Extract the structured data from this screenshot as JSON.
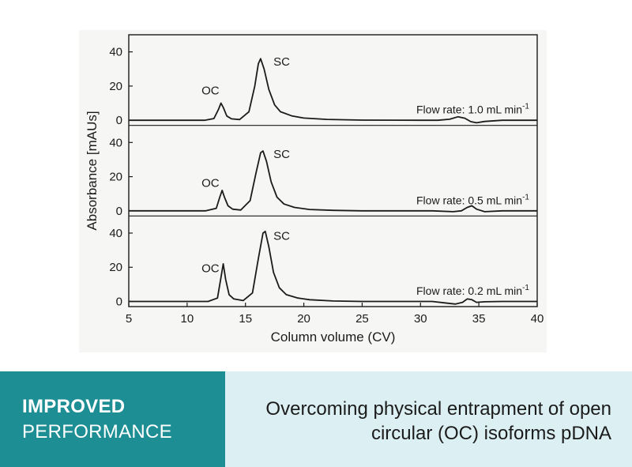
{
  "chart_data": {
    "type": "line",
    "title": "",
    "xlabel": "Column volume (CV)",
    "ylabel": "Absorbance [mAUs]",
    "xlim": [
      5,
      40
    ],
    "xticks": [
      5,
      10,
      15,
      20,
      25,
      30,
      35,
      40
    ],
    "ylim": [
      -3,
      50
    ],
    "yticks": [
      0,
      20,
      40
    ],
    "grid": false,
    "panels": [
      {
        "label": "Flow rate: 1.0 mL min",
        "label_superscript": "-1",
        "peak_labels": [
          {
            "text": "OC",
            "x": 12.0,
            "y": 15
          },
          {
            "text": "SC",
            "x": 17.4,
            "y": 32
          }
        ],
        "series": [
          {
            "x": [
              5,
              11.5,
              12.3,
              12.7,
              12.9,
              13.1,
              13.4,
              13.8,
              14.5,
              15.3,
              15.8,
              16.1,
              16.3,
              16.6,
              17.0,
              17.5,
              18.0,
              19.0,
              20.0,
              22.0,
              25.0,
              30.0,
              31.5,
              32.5,
              33.2,
              33.8,
              34.3,
              34.8,
              35.5,
              37.0,
              40.0
            ],
            "y": [
              0,
              0,
              1,
              6.5,
              10,
              7.5,
              2.5,
              0.8,
              0.4,
              5,
              20,
              33,
              36,
              30,
              18,
              9,
              5,
              2.5,
              1.3,
              0.5,
              0.1,
              0,
              0,
              0.6,
              2,
              1.2,
              -0.8,
              -1.5,
              -0.7,
              0,
              0
            ]
          }
        ]
      },
      {
        "label": "Flow rate: 0.5 mL min",
        "label_superscript": "-1",
        "peak_labels": [
          {
            "text": "OC",
            "x": 12.0,
            "y": 14
          },
          {
            "text": "SC",
            "x": 17.4,
            "y": 31
          }
        ],
        "series": [
          {
            "x": [
              5,
              11.6,
              12.5,
              12.8,
              13.0,
              13.2,
              13.5,
              13.9,
              14.6,
              15.4,
              15.9,
              16.3,
              16.5,
              16.8,
              17.2,
              17.7,
              18.3,
              19.2,
              20.5,
              22.5,
              25.0,
              31.0,
              32.8,
              33.5,
              34.0,
              34.4,
              34.8,
              35.5,
              37.0,
              40.0
            ],
            "y": [
              0,
              0,
              1.5,
              8,
              12,
              8,
              3,
              1,
              0.5,
              6,
              22,
              34,
              35,
              29,
              17,
              8,
              4,
              2,
              0.8,
              0.3,
              0,
              0,
              -0.5,
              0,
              2,
              3,
              1,
              -0.5,
              0,
              0
            ]
          }
        ]
      },
      {
        "label": "Flow rate: 0.2 mL min",
        "label_superscript": "-1",
        "peak_labels": [
          {
            "text": "OC",
            "x": 12.0,
            "y": 17
          },
          {
            "text": "SC",
            "x": 17.4,
            "y": 36
          }
        ],
        "series": [
          {
            "x": [
              5,
              11.8,
              12.6,
              12.9,
              13.1,
              13.3,
              13.6,
              14.0,
              14.8,
              15.6,
              16.1,
              16.5,
              16.7,
              17.0,
              17.4,
              17.9,
              18.5,
              19.5,
              20.5,
              22.5,
              25.0,
              31.0,
              32.3,
              33.0,
              33.6,
              34.0,
              34.4,
              34.8,
              35.5,
              37.0,
              40.0
            ],
            "y": [
              0,
              0,
              2,
              14,
              22,
              13,
              4,
              1.5,
              0.5,
              5,
              25,
              40,
              41,
              32,
              17,
              8,
              4,
              2,
              1,
              0.3,
              0,
              0,
              -1,
              -1.5,
              -0.5,
              1.5,
              1,
              -0.5,
              -0.2,
              0,
              0
            ]
          }
        ]
      }
    ]
  },
  "badge": {
    "line1": "IMPROVED",
    "line2": "PERFORMANCE"
  },
  "tagline": {
    "line1": "Overcoming physical entrapment of open",
    "line2": "circular (OC) isoforms pDNA"
  },
  "colors": {
    "teal": "#1d8e94",
    "light_blue": "#dcf0f4",
    "ink": "#1b1b1b",
    "figure_bg": "#f6f6f4"
  }
}
